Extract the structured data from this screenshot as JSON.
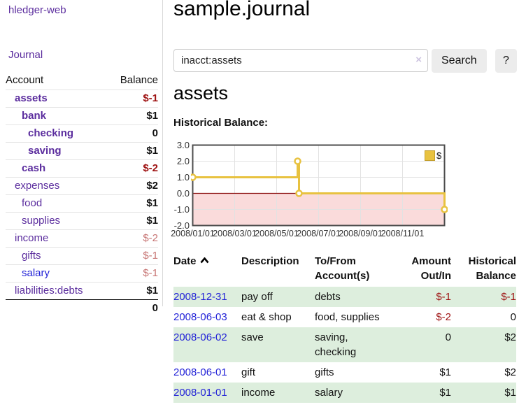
{
  "colors": {
    "accent-purple": "#5b2d9e",
    "link-blue": "#2323d7",
    "neg-strong": "#9e1212",
    "neg-soft": "#c77574",
    "row-green": "#ddeedd",
    "button-bg": "#ececec",
    "chart-line": "#e8c240",
    "chart-negative-fill": "#fadbdb",
    "chart-zero-line": "#8c0f0f",
    "chart-border": "#4d4d4d",
    "chart-grid": "#e2e2e2"
  },
  "sidebar": {
    "app_title": "hledger-web",
    "journal_label": "Journal",
    "accounts_table": {
      "headers": {
        "account": "Account",
        "balance": "Balance"
      },
      "rows": [
        {
          "name": "assets",
          "indent": 1,
          "bold": true,
          "balance": "$-1",
          "tone": "neg-strong",
          "link": "purple"
        },
        {
          "name": "bank",
          "indent": 2,
          "bold": true,
          "balance": "$1",
          "tone": "pos",
          "link": "purple"
        },
        {
          "name": "checking",
          "indent": 3,
          "bold": true,
          "balance": "0",
          "tone": "pos",
          "link": "purple"
        },
        {
          "name": "saving",
          "indent": 3,
          "bold": true,
          "balance": "$1",
          "tone": "pos",
          "link": "purple"
        },
        {
          "name": "cash",
          "indent": 2,
          "bold": true,
          "balance": "$-2",
          "tone": "neg-strong",
          "link": "purple"
        },
        {
          "name": "expenses",
          "indent": 1,
          "bold": false,
          "balance": "$2",
          "tone": "pos",
          "link": "purple"
        },
        {
          "name": "food",
          "indent": 2,
          "bold": false,
          "balance": "$1",
          "tone": "pos",
          "link": "purple"
        },
        {
          "name": "supplies",
          "indent": 2,
          "bold": false,
          "balance": "$1",
          "tone": "pos",
          "link": "purple"
        },
        {
          "name": "income",
          "indent": 1,
          "bold": false,
          "balance": "$-2",
          "tone": "neg-soft",
          "link": "purple"
        },
        {
          "name": "gifts",
          "indent": 2,
          "bold": false,
          "balance": "$-1",
          "tone": "neg-soft",
          "link": "purple"
        },
        {
          "name": "salary",
          "indent": 2,
          "bold": false,
          "balance": "$-1",
          "tone": "neg-soft",
          "link": "blue"
        },
        {
          "name": "liabilities:debts",
          "indent": 1,
          "bold": false,
          "balance": "$1",
          "tone": "pos",
          "link": "purple"
        }
      ],
      "total": "0"
    }
  },
  "main": {
    "page_title": "sample.journal",
    "search": {
      "value": "inacct:assets",
      "clear_icon": "×",
      "button_label": "Search",
      "help_label": "?"
    },
    "account_heading": "assets",
    "chart_label": "Historical Balance:"
  },
  "chart_data": {
    "type": "line",
    "style": "step-after",
    "title": "Historical Balance",
    "series": [
      {
        "name": "$",
        "color": "#e8c240",
        "points": [
          [
            "2008-01-01",
            1
          ],
          [
            "2008-06-01",
            2
          ],
          [
            "2008-06-03",
            0
          ],
          [
            "2008-12-31",
            -1
          ]
        ]
      }
    ],
    "x_ticks": [
      "2008/01/01",
      "2008/03/01",
      "2008/05/01",
      "2008/07/01",
      "2008/09/01",
      "2008/11/01"
    ],
    "y_ticks": [
      3.0,
      2.0,
      1.0,
      0.0,
      -1.0,
      -2.0
    ],
    "xlim": [
      "2008-01-01",
      "2009-01-01"
    ],
    "ylim": [
      -2,
      3
    ],
    "grid": true,
    "legend": {
      "position": "top-right",
      "label": "$"
    },
    "negative_region_shaded": true
  },
  "register": {
    "columns": {
      "date": "Date",
      "description": "Description",
      "accounts": "To/From Account(s)",
      "amount": "Amount Out/In",
      "balance": "Historical Balance"
    },
    "sort": {
      "column": "date",
      "direction": "ascending"
    },
    "rows": [
      {
        "date": "2008-12-31",
        "description": "pay off",
        "accounts": "debts",
        "amount": "$-1",
        "amount_negative": true,
        "balance": "$-1",
        "balance_negative": true
      },
      {
        "date": "2008-06-03",
        "description": "eat & shop",
        "accounts": "food, supplies",
        "amount": "$-2",
        "amount_negative": true,
        "balance": "0",
        "balance_negative": false
      },
      {
        "date": "2008-06-02",
        "description": "save",
        "accounts": "saving, checking",
        "amount": "0",
        "amount_negative": false,
        "balance": "$2",
        "balance_negative": false
      },
      {
        "date": "2008-06-01",
        "description": "gift",
        "accounts": "gifts",
        "amount": "$1",
        "amount_negative": false,
        "balance": "$2",
        "balance_negative": false
      },
      {
        "date": "2008-01-01",
        "description": "income",
        "accounts": "salary",
        "amount": "$1",
        "amount_negative": false,
        "balance": "$1",
        "balance_negative": false
      }
    ]
  }
}
